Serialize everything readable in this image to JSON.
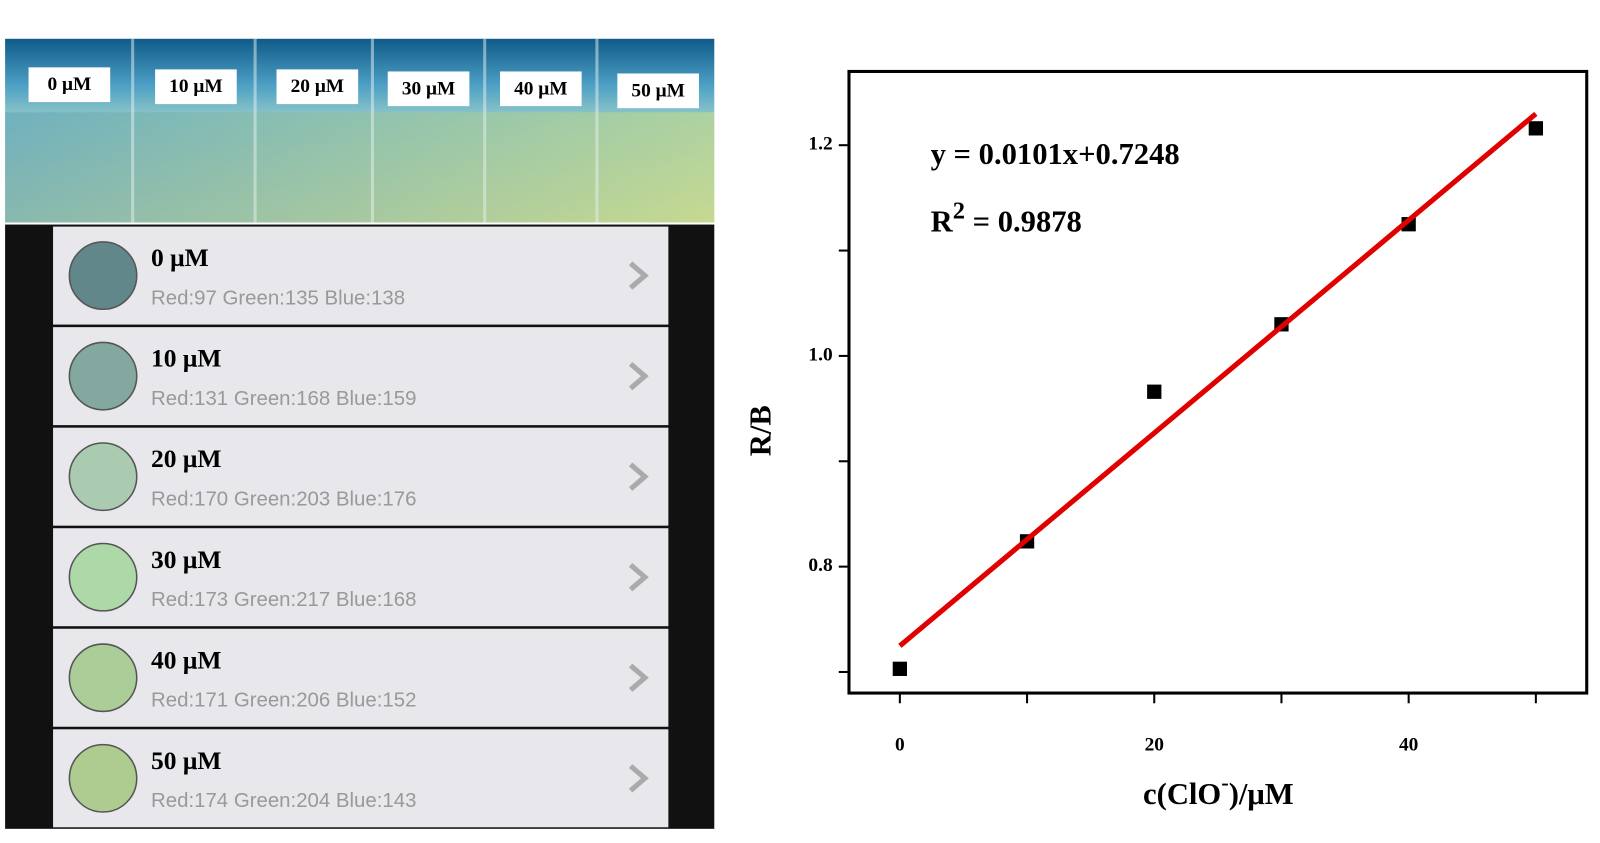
{
  "photo": {
    "labels": [
      "0 μM",
      "10 μM",
      "20 μM",
      "30 μM",
      "40 μM",
      "50 μM"
    ]
  },
  "app_list": {
    "items": [
      {
        "label": "0 μM",
        "rgb_text": "Red:97 Green:135 Blue:138",
        "color": "#61878a"
      },
      {
        "label": "10 μM",
        "rgb_text": "Red:131 Green:168 Blue:159",
        "color": "#83a89f"
      },
      {
        "label": "20 μM",
        "rgb_text": "Red:170 Green:203 Blue:176",
        "color": "#aacbb0"
      },
      {
        "label": "30 μM",
        "rgb_text": "Red:173 Green:217 Blue:168",
        "color": "#add9a8"
      },
      {
        "label": "40 μM",
        "rgb_text": "Red:171 Green:206 Blue:152",
        "color": "#abce98"
      },
      {
        "label": "50 μM",
        "rgb_text": "Red:174 Green:204 Blue:143",
        "color": "#aecc8f"
      }
    ]
  },
  "chart_data": {
    "type": "scatter",
    "y_label": "R/B",
    "x_label": {
      "base": "c(ClO",
      "sup": "-",
      "rest": ")/μM"
    },
    "equation": "y = 0.0101x+0.7248",
    "r2": {
      "base": "R",
      "sup": "2",
      "rest": " = 0.9878"
    },
    "xlim": [
      -4,
      54
    ],
    "ylim": [
      0.68,
      1.27
    ],
    "xticks": [
      0,
      20,
      40
    ],
    "xminor": [
      10,
      30,
      50
    ],
    "yticks": [
      0.8,
      {
        "value": 1.0,
        "label": "1.0"
      },
      1.2
    ],
    "yminor": [
      0.7,
      0.9,
      1.1
    ],
    "x": [
      0,
      10,
      20,
      30,
      40,
      50
    ],
    "series": [
      {
        "name": "R/B",
        "color": "#000000",
        "values": [
          0.703,
          0.824,
          0.966,
          1.03,
          1.125,
          1.216
        ]
      }
    ],
    "fit": {
      "color": "#e00000",
      "x": [
        0,
        50
      ],
      "values": [
        0.7248,
        1.2298
      ]
    }
  }
}
